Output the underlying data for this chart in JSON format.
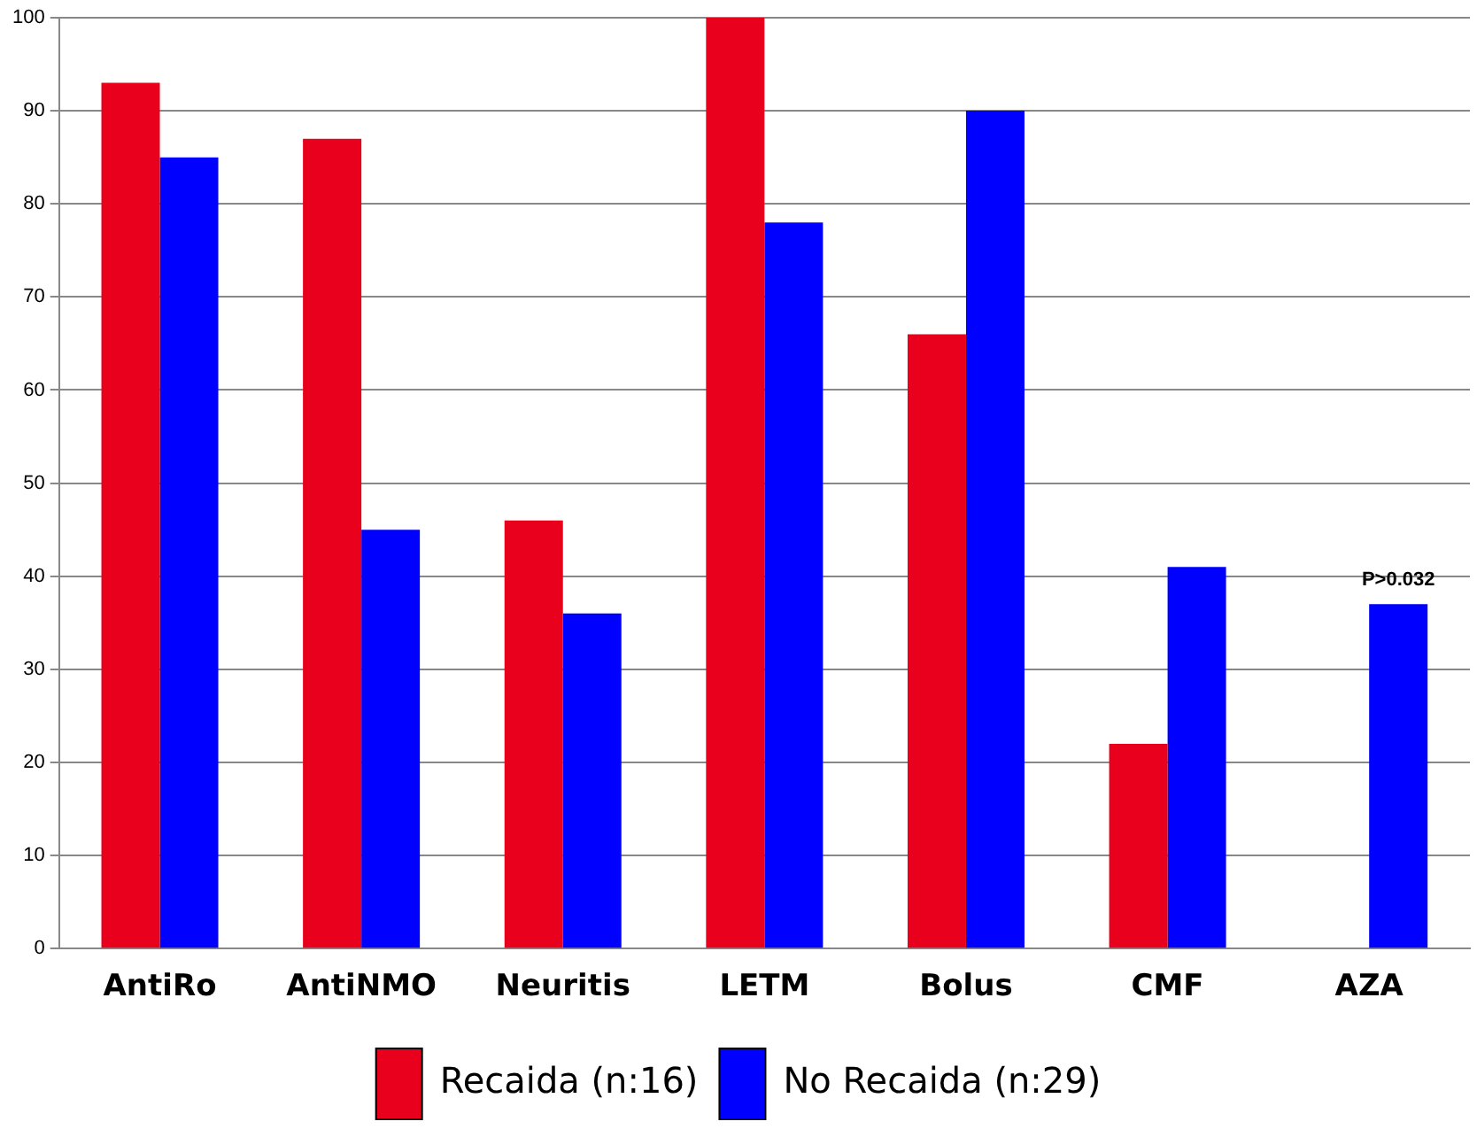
{
  "chart_data": {
    "type": "bar",
    "categories": [
      "AntiRo",
      "AntiNMO",
      "Neuritis",
      "LETM",
      "Bolus",
      "CMF",
      "AZA"
    ],
    "series": [
      {
        "name": "Recaida (n:16)",
        "color": "#e8001c",
        "values": [
          93,
          87,
          46,
          100,
          66,
          22,
          null
        ]
      },
      {
        "name": "No Recaida (n:29)",
        "color": "#0000ff",
        "values": [
          85,
          45,
          36,
          78,
          90,
          41,
          37
        ]
      }
    ],
    "ylim": [
      0,
      100
    ],
    "yticks": [
      0,
      10,
      20,
      30,
      40,
      50,
      60,
      70,
      80,
      90,
      100
    ],
    "grid": "y",
    "legend": "bottom",
    "annotations": [
      {
        "text": "P>0.032",
        "x": "AZA",
        "y": 37
      }
    ]
  }
}
